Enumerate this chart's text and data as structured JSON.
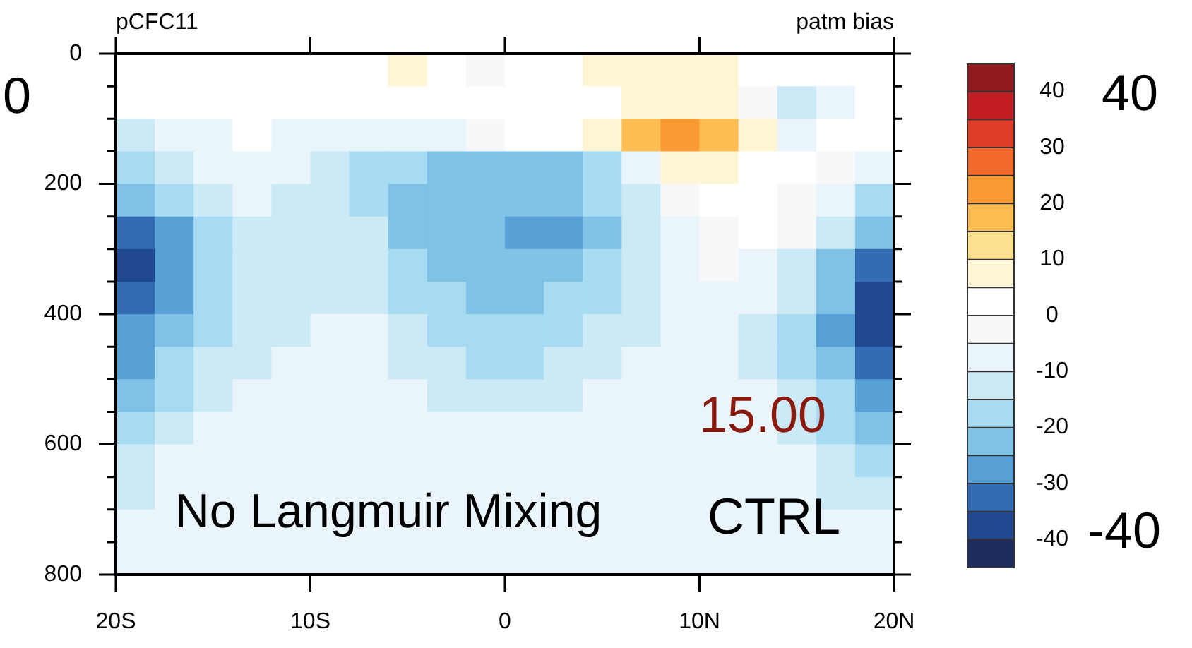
{
  "chart_data": {
    "type": "heatmap",
    "title": "pCFC11",
    "subtitle": "patm bias",
    "x": [
      -19,
      -17,
      -15,
      -13,
      -11,
      -9,
      -7,
      -5,
      -3,
      -1,
      1,
      3,
      5,
      7,
      9,
      11,
      13,
      15,
      17,
      19
    ],
    "y": [
      25,
      75,
      125,
      175,
      225,
      275,
      325,
      375,
      425,
      475,
      525,
      575,
      625,
      675,
      725,
      775
    ],
    "cells": [
      [
        2,
        2,
        2,
        2,
        2,
        2,
        2,
        7,
        2,
        -2,
        2,
        2,
        7,
        7,
        7,
        7,
        2,
        2,
        2,
        2
      ],
      [
        2,
        2,
        2,
        2,
        2,
        2,
        2,
        2,
        2,
        2,
        2,
        2,
        2,
        7,
        7,
        7,
        -2,
        -12,
        -7,
        2
      ],
      [
        -12,
        -7,
        -7,
        2,
        -7,
        -7,
        -7,
        -7,
        -7,
        -2,
        2,
        2,
        7,
        17,
        22,
        17,
        7,
        -7,
        2,
        2
      ],
      [
        -17,
        -12,
        -7,
        -7,
        -7,
        -12,
        -17,
        -17,
        -22,
        -22,
        -22,
        -22,
        -17,
        -7,
        7,
        7,
        2,
        2,
        -2,
        -7
      ],
      [
        -22,
        -17,
        -12,
        -7,
        -12,
        -12,
        -17,
        -22,
        -22,
        -22,
        -22,
        -22,
        -17,
        -12,
        -2,
        2,
        2,
        -2,
        -7,
        -17
      ],
      [
        -32,
        -27,
        -17,
        -12,
        -12,
        -12,
        -12,
        -22,
        -22,
        -22,
        -27,
        -27,
        -22,
        -12,
        -7,
        -2,
        2,
        -2,
        -12,
        -22
      ],
      [
        -37,
        -27,
        -17,
        -12,
        -12,
        -12,
        -12,
        -17,
        -22,
        -22,
        -22,
        -22,
        -17,
        -12,
        -7,
        -2,
        -7,
        -12,
        -22,
        -32
      ],
      [
        -32,
        -27,
        -17,
        -12,
        -12,
        -12,
        -12,
        -17,
        -17,
        -22,
        -22,
        -17,
        -17,
        -12,
        -7,
        -7,
        -7,
        -12,
        -22,
        -37
      ],
      [
        -27,
        -22,
        -17,
        -12,
        -12,
        -7,
        -7,
        -12,
        -17,
        -17,
        -17,
        -17,
        -12,
        -12,
        -7,
        -7,
        -12,
        -17,
        -27,
        -37
      ],
      [
        -27,
        -17,
        -12,
        -12,
        -7,
        -7,
        -7,
        -12,
        -12,
        -17,
        -17,
        -12,
        -12,
        -7,
        -7,
        -7,
        -12,
        -17,
        -22,
        -32
      ],
      [
        -22,
        -17,
        -12,
        -7,
        -7,
        -7,
        -7,
        -7,
        -12,
        -12,
        -12,
        -12,
        -7,
        -7,
        -7,
        -7,
        -7,
        -12,
        -17,
        -27
      ],
      [
        -17,
        -12,
        -7,
        -7,
        -7,
        -7,
        -7,
        -7,
        -7,
        -7,
        -7,
        -7,
        -7,
        -7,
        -7,
        -7,
        -7,
        -12,
        -17,
        -22
      ],
      [
        -12,
        -7,
        -7,
        -7,
        -7,
        -7,
        -7,
        -7,
        -7,
        -7,
        -7,
        -7,
        -7,
        -7,
        -7,
        -7,
        -7,
        -7,
        -12,
        -17
      ],
      [
        -12,
        -7,
        -7,
        -7,
        -7,
        -7,
        -7,
        -7,
        -7,
        -7,
        -7,
        -7,
        -7,
        -7,
        -7,
        -7,
        -7,
        -7,
        -12,
        -12
      ],
      [
        -7,
        -7,
        -7,
        -7,
        -7,
        -7,
        -7,
        -7,
        -7,
        -7,
        -7,
        -7,
        -7,
        -7,
        -7,
        -7,
        -7,
        -7,
        -7,
        -7
      ],
      [
        -7,
        -7,
        -7,
        -7,
        -7,
        -7,
        -7,
        -7,
        -7,
        -7,
        -7,
        -7,
        -7,
        -7,
        -7,
        -7,
        -7,
        -7,
        -7,
        -7
      ]
    ],
    "xlim": [
      -20,
      20
    ],
    "xticks": [
      {
        "value": -20,
        "label": "20S"
      },
      {
        "value": -10,
        "label": "10S"
      },
      0,
      {
        "value": 10,
        "label": "10N"
      },
      {
        "value": 20,
        "label": "20N"
      }
    ],
    "ylim": [
      800,
      0
    ],
    "yticks": [
      0,
      {
        "value": 50,
        "label": null
      },
      {
        "value": 100,
        "label": null
      },
      {
        "value": 150,
        "label": null
      },
      200,
      {
        "value": 250,
        "label": null
      },
      {
        "value": 300,
        "label": null
      },
      {
        "value": 350,
        "label": null
      },
      400,
      {
        "value": 450,
        "label": null
      },
      {
        "value": 500,
        "label": null
      },
      {
        "value": 550,
        "label": null
      },
      600,
      {
        "value": 650,
        "label": null
      },
      {
        "value": 700,
        "label": null
      },
      {
        "value": 750,
        "label": null
      },
      800
    ],
    "clim": [
      -45,
      45
    ],
    "cticks": [
      -40,
      {
        "value": -35,
        "label": null
      },
      -30,
      {
        "value": -25,
        "label": null
      },
      -20,
      {
        "value": -15,
        "label": null
      },
      -10,
      {
        "value": -5,
        "label": null
      },
      0,
      {
        "value": 5,
        "label": null
      },
      10,
      {
        "value": 15,
        "label": null
      },
      20,
      {
        "value": 25,
        "label": null
      },
      30,
      {
        "value": 35,
        "label": null
      },
      40
    ],
    "colors": [
      "#1c2c5e",
      "#22488f",
      "#346cb4",
      "#56a0d6",
      "#80c1e6",
      "#a6dbf2",
      "#cce9f6",
      "#eaf4fb",
      "#f6f8fa",
      "#ffffff",
      "#fdf5d3",
      "#fbe18e",
      "#fdbd52",
      "#fa9a33",
      "#f3692c",
      "#e03b27",
      "#c21d25",
      "#911a1c"
    ],
    "annotations": [
      "0",
      "40",
      "-40",
      "15.00",
      "No Langmuir Mixing",
      "CTRL"
    ]
  }
}
